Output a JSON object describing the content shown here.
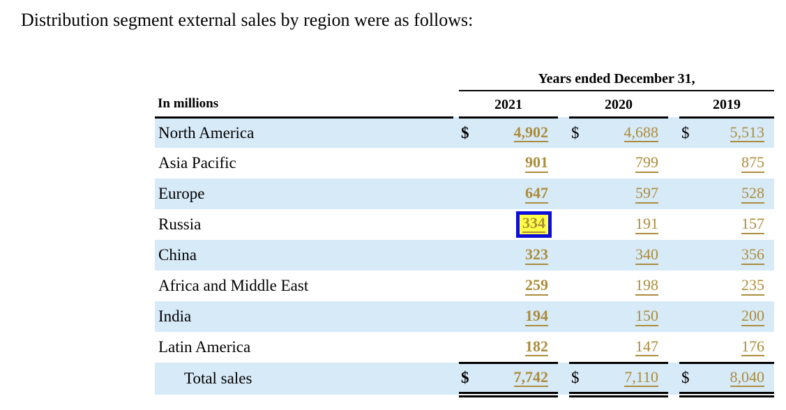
{
  "intro": "Distribution segment external sales by region were as follows:",
  "table": {
    "units_label": "In millions",
    "period_header": "Years ended December 31,",
    "years": [
      "2021",
      "2020",
      "2019"
    ],
    "currency": "$",
    "rows": [
      {
        "label": "North America",
        "values": [
          "4,902",
          "4,688",
          "5,513"
        ],
        "show_currency": true
      },
      {
        "label": "Asia Pacific",
        "values": [
          "901",
          "799",
          "875"
        ],
        "show_currency": false
      },
      {
        "label": "Europe",
        "values": [
          "647",
          "597",
          "528"
        ],
        "show_currency": false
      },
      {
        "label": "Russia",
        "values": [
          "334",
          "191",
          "157"
        ],
        "show_currency": false,
        "highlighted_value": "334",
        "highlighted_column": "2021"
      },
      {
        "label": "China",
        "values": [
          "323",
          "340",
          "356"
        ],
        "show_currency": false
      },
      {
        "label": "Africa and Middle East",
        "values": [
          "259",
          "198",
          "235"
        ],
        "show_currency": false
      },
      {
        "label": "India",
        "values": [
          "194",
          "150",
          "200"
        ],
        "show_currency": false
      },
      {
        "label": "Latin America",
        "values": [
          "182",
          "147",
          "176"
        ],
        "show_currency": false
      },
      {
        "label": "Total sales",
        "values": [
          "7,742",
          "7,110",
          "8,040"
        ],
        "show_currency": true,
        "is_total": true
      }
    ],
    "colors": {
      "row_stripe": "#d7eaf8",
      "value_link": "#ab8c3a",
      "highlight_fill": "#ffff45",
      "highlight_border": "#0d0dd8",
      "rule": "#000000"
    }
  }
}
